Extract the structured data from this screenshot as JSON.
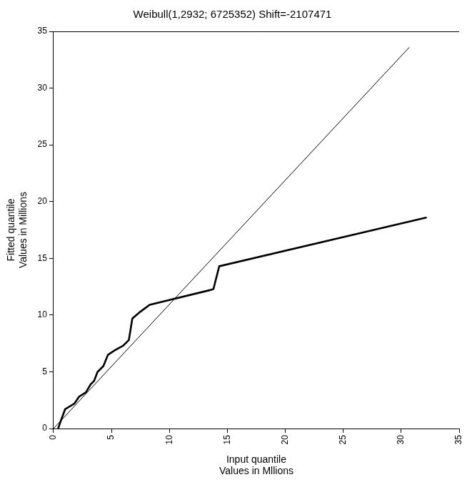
{
  "chart_data": {
    "type": "line",
    "title": "Weibull(1,2932; 6725352) Shift=-2107471",
    "xlabel": [
      "Input quantile",
      "Values in Mllions"
    ],
    "ylabel": [
      "Fitted quantile",
      "Values in Millions"
    ],
    "xlim": [
      0,
      35
    ],
    "xticks": [
      0,
      5,
      10,
      15,
      20,
      25,
      30,
      35
    ],
    "ylim": [
      0,
      35
    ],
    "yticks": [
      0,
      5,
      10,
      15,
      20,
      25,
      30,
      35
    ],
    "grid": false,
    "series": [
      {
        "color": "#000000",
        "line_style": "solid",
        "x": [
          0,
          30.7
        ],
        "values": [
          0,
          33.6
        ]
      },
      {
        "color": "#000000",
        "line_style": "solid",
        "x": [
          0.4,
          0.6,
          1.0,
          1.8,
          2.2,
          2.8,
          3.2,
          3.5,
          3.8,
          4.3,
          4.7,
          5.3,
          6.0,
          6.5,
          6.8,
          7.5,
          8.3,
          13.5,
          13.8,
          14.3,
          32.2
        ],
        "values": [
          0,
          0.6,
          1.7,
          2.2,
          2.8,
          3.2,
          3.9,
          4.2,
          5.0,
          5.5,
          6.5,
          6.9,
          7.3,
          7.8,
          9.7,
          10.3,
          10.9,
          12.2,
          12.3,
          14.3,
          18.6
        ]
      }
    ]
  }
}
